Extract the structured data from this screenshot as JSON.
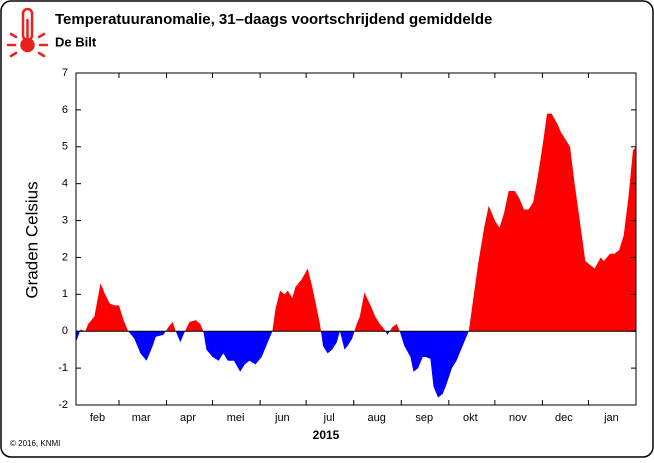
{
  "chart_data": {
    "type": "area",
    "title": "Temperatuuranomalie, 31–daags voortschrijdend gemiddelde",
    "subtitle": "De Bilt",
    "y_label": "Graden Celsius",
    "x_label": "2015",
    "footnote": "© 2016, KNMI",
    "x": [
      0,
      3,
      6,
      8,
      12,
      16,
      19,
      22,
      25,
      28,
      31,
      34,
      38,
      42,
      46,
      50,
      52,
      57,
      60,
      63,
      65,
      68,
      71,
      74,
      78,
      81,
      83,
      85,
      89,
      93,
      96,
      99,
      103,
      107,
      110,
      113,
      117,
      121,
      125,
      128,
      130,
      133,
      136,
      138,
      141,
      143,
      147,
      151,
      154,
      156,
      159,
      161,
      164,
      167,
      170,
      172,
      175,
      177,
      180,
      183,
      185,
      188,
      192,
      195,
      198,
      201,
      203,
      206,
      209,
      211,
      214,
      218,
      220,
      223,
      226,
      228,
      231,
      233,
      236,
      239,
      241,
      245,
      248,
      250,
      253,
      256,
      258,
      262,
      266,
      269,
      273,
      276,
      279,
      282,
      286,
      289,
      292,
      295,
      298,
      301,
      304,
      307,
      310,
      314,
      316,
      319,
      322,
      325,
      329,
      332,
      335,
      338,
      342,
      344,
      348,
      351,
      354,
      357,
      360,
      363,
      365
    ],
    "series": [
      {
        "name": "Temperatuuranomalie",
        "color_positive": "#ff0000",
        "color_negative": "#0000ff",
        "values": [
          -0.3,
          0.05,
          0,
          0.2,
          0.4,
          1.3,
          1.0,
          0.75,
          0.7,
          0.7,
          0.3,
          0,
          -0.2,
          -0.6,
          -0.8,
          -0.4,
          -0.15,
          -0.1,
          0.1,
          0.25,
          0,
          -0.3,
          0,
          0.25,
          0.3,
          0.2,
          0,
          -0.5,
          -0.7,
          -0.8,
          -0.6,
          -0.8,
          -0.8,
          -1.1,
          -0.9,
          -0.8,
          -0.9,
          -0.7,
          -0.3,
          0,
          0.6,
          1.1,
          1.0,
          1.1,
          0.9,
          1.2,
          1.4,
          1.7,
          1.2,
          0.8,
          0.2,
          -0.4,
          -0.6,
          -0.5,
          -0.3,
          0,
          -0.5,
          -0.4,
          -0.2,
          0.2,
          0.4,
          1.05,
          0.7,
          0.4,
          0.2,
          0.05,
          -0.1,
          0.1,
          0.2,
          0,
          -0.4,
          -0.7,
          -1.1,
          -1.0,
          -0.7,
          -0.7,
          -0.75,
          -1.5,
          -1.8,
          -1.7,
          -1.5,
          -1.0,
          -0.8,
          -0.6,
          -0.3,
          0,
          0.6,
          1.8,
          2.8,
          3.4,
          3.0,
          2.8,
          3.2,
          3.8,
          3.8,
          3.6,
          3.3,
          3.3,
          3.5,
          4.2,
          5.0,
          5.9,
          5.9,
          5.6,
          5.4,
          5.2,
          5.0,
          4.0,
          2.8,
          1.9,
          1.8,
          1.7,
          2.0,
          1.9,
          2.1,
          2.1,
          2.2,
          2.6,
          3.6,
          4.9,
          5.0
        ]
      }
    ],
    "xlim": [
      0,
      365
    ],
    "xticks": [
      {
        "value": 14,
        "label": "feb"
      },
      {
        "value": 42.5,
        "label": "mar"
      },
      {
        "value": 73,
        "label": "apr"
      },
      {
        "value": 104,
        "label": "mei"
      },
      {
        "value": 134.5,
        "label": "jun"
      },
      {
        "value": 165,
        "label": "jul"
      },
      {
        "value": 196,
        "label": "aug"
      },
      {
        "value": 227,
        "label": "sep"
      },
      {
        "value": 257,
        "label": "okt"
      },
      {
        "value": 288,
        "label": "nov"
      },
      {
        "value": 318,
        "label": "dec"
      },
      {
        "value": 349,
        "label": "jan"
      }
    ],
    "xminorticks": [
      28,
      59,
      89,
      120,
      150,
      181,
      212,
      243,
      273,
      304,
      334
    ],
    "ylim": [
      -2,
      7
    ],
    "yticks": [
      -2,
      -1,
      0,
      1,
      2,
      3,
      4,
      5,
      6,
      7
    ]
  }
}
